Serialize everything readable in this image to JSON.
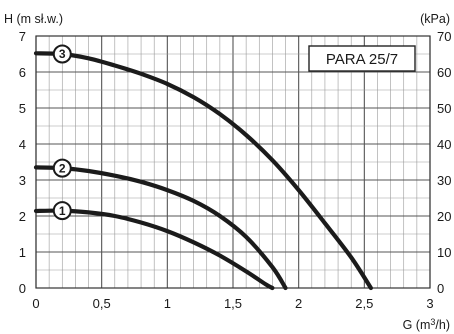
{
  "chart_data": {
    "type": "line",
    "title": "PARA 25/7",
    "xlabel": "G (m3/h)",
    "ylabel_left": "H (m sł.w.)",
    "ylabel_right": "(kPa)",
    "xlim": [
      0,
      3
    ],
    "ylim": [
      0,
      7
    ],
    "ylim_right": [
      0,
      70
    ],
    "x_ticks": [
      "0",
      "0,5",
      "1",
      "1,5",
      "2",
      "2,5",
      "3"
    ],
    "y_ticks_left": [
      "0",
      "1",
      "2",
      "3",
      "4",
      "5",
      "6",
      "7"
    ],
    "y_ticks_right": [
      "0",
      "10",
      "20",
      "30",
      "40",
      "50",
      "60",
      "70"
    ],
    "grid": true,
    "series": [
      {
        "name": "1",
        "x": [
          0,
          0.2,
          0.4,
          0.6,
          0.8,
          1.0,
          1.2,
          1.4,
          1.6,
          1.75,
          1.8
        ],
        "y": [
          2.14,
          2.15,
          2.1,
          2.0,
          1.82,
          1.58,
          1.27,
          0.9,
          0.46,
          0.1,
          0.0
        ]
      },
      {
        "name": "2",
        "x": [
          0,
          0.2,
          0.4,
          0.6,
          0.8,
          1.0,
          1.2,
          1.4,
          1.6,
          1.8,
          1.9
        ],
        "y": [
          3.35,
          3.33,
          3.25,
          3.12,
          2.95,
          2.72,
          2.42,
          2.0,
          1.42,
          0.58,
          0.0
        ]
      },
      {
        "name": "3",
        "x": [
          0,
          0.2,
          0.4,
          0.6,
          0.8,
          1.0,
          1.2,
          1.4,
          1.6,
          1.8,
          2.0,
          2.2,
          2.4,
          2.55
        ],
        "y": [
          6.52,
          6.5,
          6.38,
          6.18,
          5.95,
          5.67,
          5.3,
          4.83,
          4.25,
          3.55,
          2.72,
          1.8,
          0.85,
          0.0
        ]
      }
    ]
  }
}
